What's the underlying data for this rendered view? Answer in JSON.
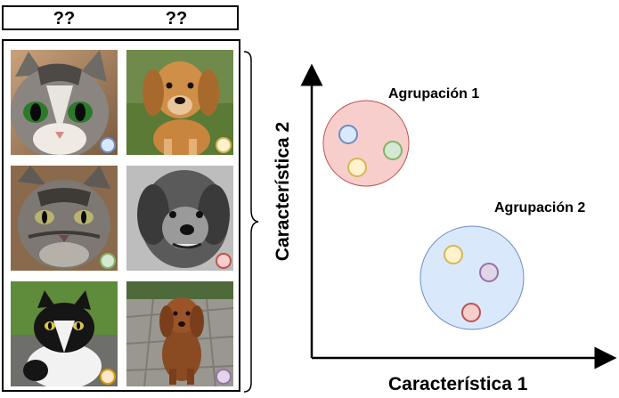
{
  "header": {
    "labels": [
      "??",
      "??"
    ]
  },
  "images": [
    {
      "animal": "cat",
      "desc": "tabby cat with green eyes",
      "dot_color": "#dae8fc",
      "dot_border": "#6c8ebf"
    },
    {
      "animal": "dog",
      "desc": "golden retriever puppy on grass",
      "dot_color": "#fff2cc",
      "dot_border": "#d6b656"
    },
    {
      "animal": "cat",
      "desc": "gray tabby cat",
      "dot_color": "#d5e8d4",
      "dot_border": "#82b366"
    },
    {
      "animal": "dog",
      "desc": "black and white scruffy dog",
      "dot_color": "#f8cecc",
      "dot_border": "#b85450"
    },
    {
      "animal": "cat",
      "desc": "black and white cat on path",
      "dot_color": "#ffe6cc",
      "dot_border": "#d79b00"
    },
    {
      "animal": "dog",
      "desc": "brown poodle sitting on stones",
      "dot_color": "#e1d5e7",
      "dot_border": "#9673a6"
    }
  ],
  "scatter": {
    "xlabel": "Característica 1",
    "ylabel": "Característica 2",
    "clusters": [
      {
        "label": "Agrupación 1",
        "fill": "#f8cecc",
        "stroke": "#b85450",
        "points": [
          {
            "color": "#dae8fc",
            "stroke": "#6c8ebf"
          },
          {
            "color": "#d5e8d4",
            "stroke": "#82b366"
          },
          {
            "color": "#fff2cc",
            "stroke": "#d6b656"
          }
        ]
      },
      {
        "label": "Agrupación 2",
        "fill": "#dae8fc",
        "stroke": "#6c8ebf",
        "points": [
          {
            "color": "#fff2cc",
            "stroke": "#d6b656"
          },
          {
            "color": "#e1d5e7",
            "stroke": "#9673a6"
          },
          {
            "color": "#f8cecc",
            "stroke": "#b85450"
          }
        ]
      }
    ]
  }
}
